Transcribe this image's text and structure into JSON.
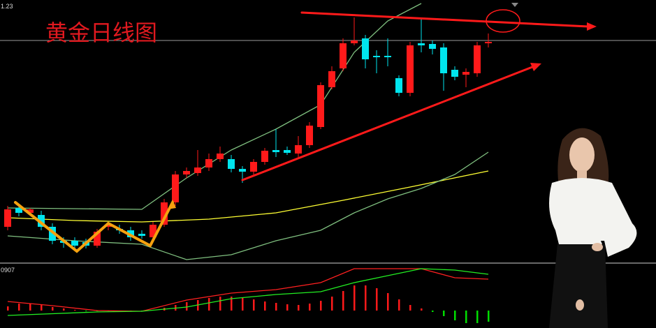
{
  "chart_data": {
    "type": "candlestick",
    "title": "黄金日线图",
    "price_label": "1.23",
    "up_color": "#ff1a1a",
    "down_color": "#00e5ee",
    "ylim": [
      0,
      376
    ],
    "open": [
      51,
      78,
      71,
      68,
      51,
      31,
      31,
      29,
      24,
      51,
      48,
      46,
      41,
      36,
      54,
      86,
      126,
      128,
      136,
      148,
      148,
      134,
      130,
      144,
      161,
      161,
      156,
      168,
      194,
      251,
      278,
      314,
      321,
      296,
      296,
      264,
      243,
      314,
      313,
      308,
      276,
      269,
      271,
      314
    ],
    "close": [
      76,
      71,
      76,
      51,
      31,
      28,
      24,
      24,
      44,
      54,
      46,
      36,
      38,
      54,
      86,
      126,
      131,
      136,
      148,
      156,
      134,
      130,
      144,
      160,
      158,
      157,
      168,
      196,
      254,
      274,
      314,
      318,
      291,
      294,
      294,
      243,
      311,
      311,
      306,
      271,
      266,
      273,
      311,
      316
    ],
    "high": [
      81,
      84,
      78,
      74,
      56,
      36,
      36,
      34,
      48,
      58,
      54,
      51,
      46,
      58,
      91,
      131,
      136,
      161,
      156,
      166,
      154,
      138,
      148,
      164,
      191,
      166,
      181,
      201,
      258,
      281,
      321,
      351,
      326,
      304,
      321,
      268,
      316,
      351,
      318,
      314,
      281,
      278,
      316,
      328
    ],
    "low": [
      46,
      66,
      68,
      46,
      26,
      21,
      18,
      20,
      21,
      46,
      41,
      31,
      34,
      31,
      51,
      81,
      121,
      124,
      131,
      144,
      129,
      114,
      126,
      140,
      151,
      154,
      151,
      164,
      191,
      248,
      274,
      311,
      278,
      271,
      281,
      238,
      238,
      301,
      298,
      246,
      261,
      251,
      266,
      308
    ],
    "overlays": [
      {
        "color": "#ffff33",
        "x": [
          0,
          6,
          12,
          18,
          24,
          30,
          36,
          43
        ],
        "values": [
          64,
          60,
          58,
          62,
          71,
          89,
          108,
          131
        ]
      },
      {
        "color": "#7fbf7f",
        "x": [
          0,
          12,
          16,
          20,
          24,
          28,
          31,
          34,
          37
        ],
        "values": [
          78,
          76,
          121,
          161,
          191,
          226,
          301,
          346,
          371
        ]
      },
      {
        "color": "#7fbf7f",
        "x": [
          0,
          6,
          12,
          16,
          20,
          24,
          28,
          31,
          34,
          37,
          40,
          43
        ],
        "values": [
          38,
          31,
          26,
          4,
          11,
          31,
          46,
          71,
          91,
          106,
          126,
          158
        ]
      }
    ],
    "macd": {
      "label": "0907",
      "ylim": [
        -25,
        67
      ],
      "up_color": "#ff1a1a",
      "down_color": "#00dd00",
      "histogram": [
        6,
        10,
        10,
        8,
        5,
        3,
        1,
        -1,
        -1,
        -1,
        -2,
        -1,
        -1,
        1,
        4,
        8,
        12,
        15,
        18,
        20,
        20,
        18,
        16,
        13,
        11,
        9,
        8,
        10,
        14,
        20,
        28,
        36,
        36,
        32,
        25,
        16,
        8,
        3,
        -2,
        -8,
        -14,
        -18,
        -18,
        -16
      ],
      "lines": [
        {
          "color": "#ff2020",
          "x": [
            0,
            4,
            8,
            12,
            16,
            20,
            24,
            28,
            31,
            34,
            37,
            40,
            43
          ],
          "values": [
            13,
            7,
            0,
            -1,
            15,
            25,
            30,
            40,
            60,
            60,
            60,
            47,
            45
          ]
        },
        {
          "color": "#22ee22",
          "x": [
            0,
            8,
            12,
            16,
            20,
            24,
            28,
            31,
            34,
            37,
            40,
            43
          ],
          "values": [
            -7,
            -2,
            -1,
            5,
            17,
            23,
            27,
            40,
            50,
            60,
            58,
            52
          ]
        }
      ]
    }
  }
}
